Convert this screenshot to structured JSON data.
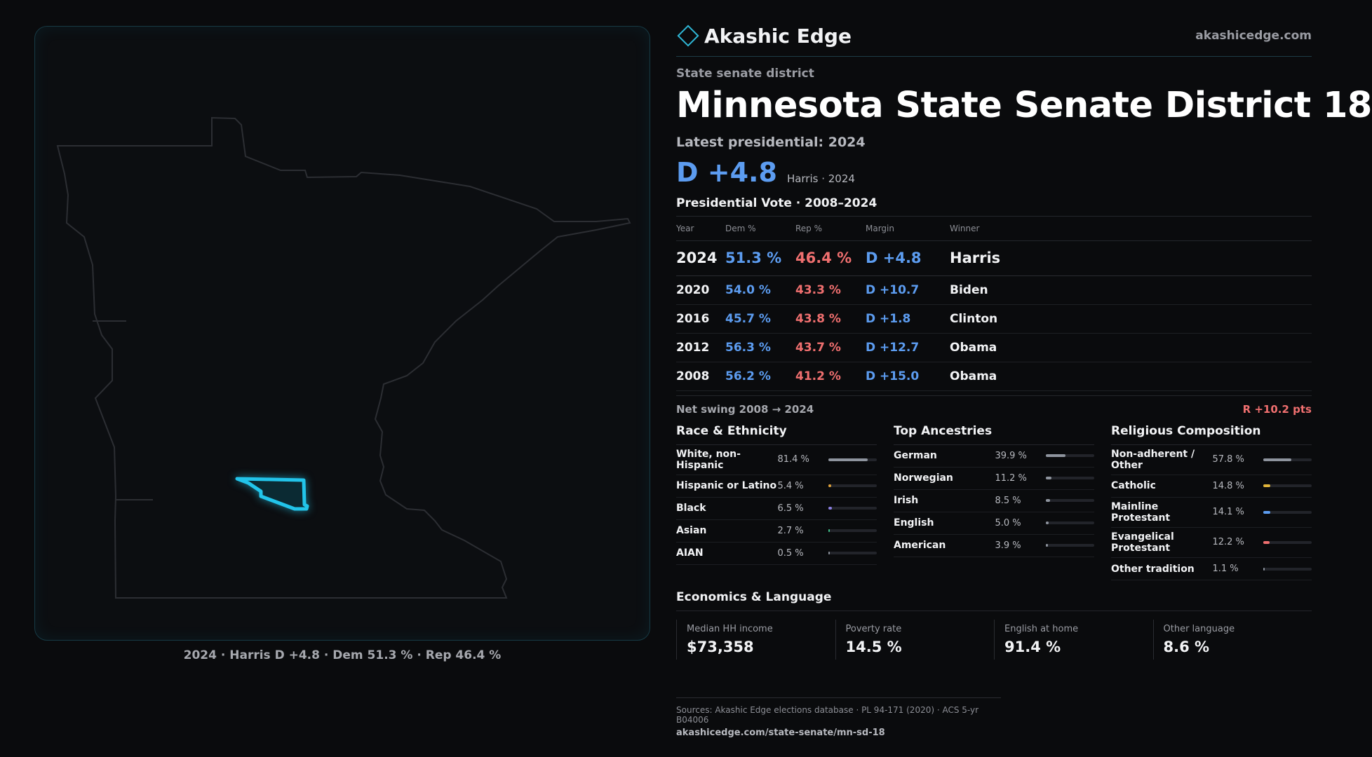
{
  "brand": {
    "name": "Akashic Edge",
    "url": "akashicedge.com",
    "logo_icon": "diamond-outline-icon",
    "accent": "#2fb7d6"
  },
  "header": {
    "kicker": "State senate district",
    "title": "Minnesota State Senate District 18",
    "latest_label": "Latest presidential: 2024",
    "headline_margin": "D +4.8",
    "headline_sub": "Harris · 2024"
  },
  "votes": {
    "title": "Presidential Vote · 2008–2024",
    "columns": [
      "Year",
      "Dem %",
      "Rep %",
      "Margin",
      "Winner"
    ],
    "rows": [
      {
        "year": "2024",
        "dem": "51.3 %",
        "rep": "46.4 %",
        "margin": "D +4.8",
        "winner": "Harris"
      },
      {
        "year": "2020",
        "dem": "54.0 %",
        "rep": "43.3 %",
        "margin": "D +10.7",
        "winner": "Biden"
      },
      {
        "year": "2016",
        "dem": "45.7 %",
        "rep": "43.8 %",
        "margin": "D +1.8",
        "winner": "Clinton"
      },
      {
        "year": "2012",
        "dem": "56.3 %",
        "rep": "43.7 %",
        "margin": "D +12.7",
        "winner": "Obama"
      },
      {
        "year": "2008",
        "dem": "56.2 %",
        "rep": "41.2 %",
        "margin": "D +15.0",
        "winner": "Obama"
      }
    ],
    "swing_label": "Net swing 2008 → 2024",
    "swing_value": "R +10.2 pts"
  },
  "race": {
    "title": "Race & Ethnicity",
    "rows": [
      {
        "label": "White, non-Hispanic",
        "value": "81.4 %",
        "fraction": 0.814,
        "color": "#8e949e"
      },
      {
        "label": "Hispanic or Latino",
        "value": "5.4 %",
        "fraction": 0.054,
        "color": "#e0a23a"
      },
      {
        "label": "Black",
        "value": "6.5 %",
        "fraction": 0.065,
        "color": "#8a7ee0"
      },
      {
        "label": "Asian",
        "value": "2.7 %",
        "fraction": 0.027,
        "color": "#3ec28a"
      },
      {
        "label": "AIAN",
        "value": "0.5 %",
        "fraction": 0.005,
        "color": "#8e949e"
      }
    ]
  },
  "ancestry": {
    "title": "Top Ancestries",
    "rows": [
      {
        "label": "German",
        "value": "39.9 %",
        "fraction": 0.399,
        "color": "#8e949e"
      },
      {
        "label": "Norwegian",
        "value": "11.2 %",
        "fraction": 0.112,
        "color": "#8e949e"
      },
      {
        "label": "Irish",
        "value": "8.5 %",
        "fraction": 0.085,
        "color": "#8e949e"
      },
      {
        "label": "English",
        "value": "5.0 %",
        "fraction": 0.05,
        "color": "#8e949e"
      },
      {
        "label": "American",
        "value": "3.9 %",
        "fraction": 0.039,
        "color": "#8e949e"
      }
    ]
  },
  "religion": {
    "title": "Religious Composition",
    "rows": [
      {
        "label": "Non-adherent / Other",
        "value": "57.8 %",
        "fraction": 0.578,
        "color": "#8e949e"
      },
      {
        "label": "Catholic",
        "value": "14.8 %",
        "fraction": 0.148,
        "color": "#e0b43a"
      },
      {
        "label": "Mainline Protestant",
        "value": "14.1 %",
        "fraction": 0.141,
        "color": "#5c9cf0"
      },
      {
        "label": "Evangelical Protestant",
        "value": "12.2 %",
        "fraction": 0.122,
        "color": "#ef6f6f"
      },
      {
        "label": "Other tradition",
        "value": "1.1 %",
        "fraction": 0.011,
        "color": "#8e949e"
      }
    ]
  },
  "economics": {
    "title": "Economics & Language",
    "cells": [
      {
        "label": "Median HH income",
        "value": "$73,358"
      },
      {
        "label": "Poverty rate",
        "value": "14.5 %"
      },
      {
        "label": "English at home",
        "value": "91.4 %"
      },
      {
        "label": "Other language",
        "value": "8.6 %"
      }
    ]
  },
  "map": {
    "caption": "2024 · Harris D +4.8 · Dem 51.3 % · Rep 46.4 %",
    "state_outline_color": "#2c2e33",
    "district_color": "#22c4ea"
  },
  "sources": {
    "line1": "Sources: Akashic Edge elections database · PL 94-171 (2020) · ACS 5-yr B04006",
    "line2": "akashicedge.com/state-senate/mn-sd-18"
  },
  "colors": {
    "dem": "#5c9cf0",
    "rep": "#ef6f6f",
    "background": "#0a0b0d"
  }
}
